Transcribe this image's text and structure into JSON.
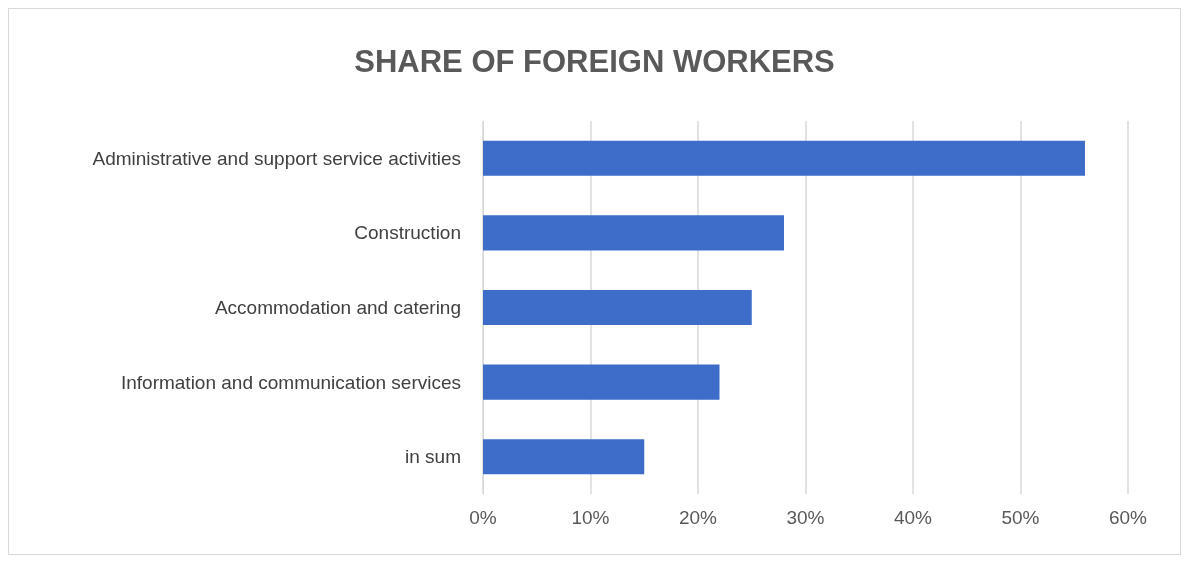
{
  "chart_data": {
    "type": "bar",
    "orientation": "horizontal",
    "title": "SHARE OF FOREIGN WORKERS",
    "categories": [
      "Administrative and support service activities",
      "Construction",
      "Accommodation and catering",
      "Information and communication services",
      "in sum"
    ],
    "values": [
      56,
      28,
      25,
      22,
      15
    ],
    "color": "#3d6cc9",
    "xlim": [
      0,
      60
    ],
    "xticks": [
      {
        "value": 0,
        "label": "0%"
      },
      {
        "value": 10,
        "label": "10%"
      },
      {
        "value": 20,
        "label": "20%"
      },
      {
        "value": 30,
        "label": "30%"
      },
      {
        "value": 40,
        "label": "40%"
      },
      {
        "value": 50,
        "label": "50%"
      },
      {
        "value": 60,
        "label": "60%"
      }
    ],
    "grid": "x"
  }
}
